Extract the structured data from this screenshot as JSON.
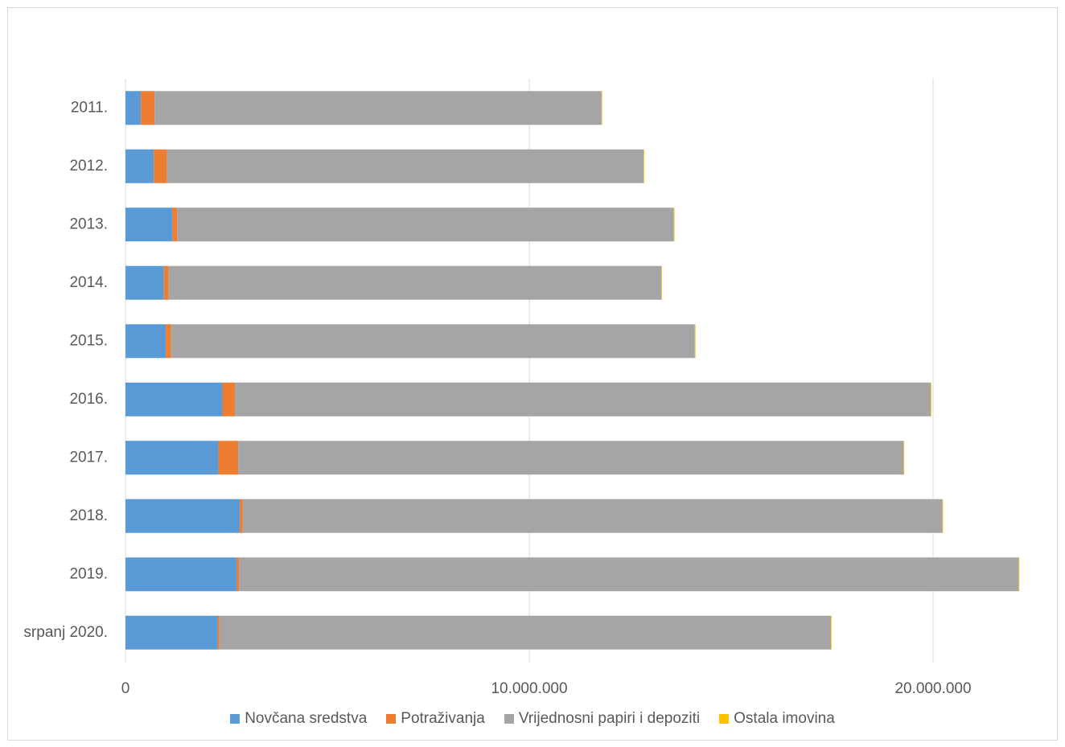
{
  "chart_data": {
    "type": "bar",
    "orientation": "horizontal",
    "stacked": true,
    "categories": [
      "2011.",
      "2012.",
      "2013.",
      "2014.",
      "2015.",
      "2016.",
      "2017.",
      "2018.",
      "2019.",
      "srpanj 2020."
    ],
    "series": [
      {
        "name": "Novčana sredstva",
        "color": "#5b9bd5",
        "values": [
          380000,
          700000,
          1160000,
          950000,
          1000000,
          2400000,
          2300000,
          2830000,
          2750000,
          2280000
        ]
      },
      {
        "name": "Potraživanja",
        "color": "#ed7d31",
        "values": [
          340000,
          330000,
          120000,
          120000,
          130000,
          310000,
          490000,
          70000,
          60000,
          40000
        ]
      },
      {
        "name": "Vrijednosni papiri i depoziti",
        "color": "#a5a5a5",
        "values": [
          11070000,
          11800000,
          12300000,
          12200000,
          12970000,
          17230000,
          16480000,
          17330000,
          19310000,
          15150000
        ]
      },
      {
        "name": "Ostala imovina",
        "color": "#ffc000",
        "values": [
          10000,
          10000,
          10000,
          10000,
          10000,
          10000,
          10000,
          10000,
          10000,
          10000
        ]
      }
    ],
    "xlim": [
      0,
      22000000
    ],
    "x_ticks": [
      {
        "value": 0,
        "label": "0"
      },
      {
        "value": 10000000,
        "label": "10.000.000"
      },
      {
        "value": 20000000,
        "label": "20.000.000"
      }
    ],
    "grid": true,
    "legend_position": "bottom"
  }
}
